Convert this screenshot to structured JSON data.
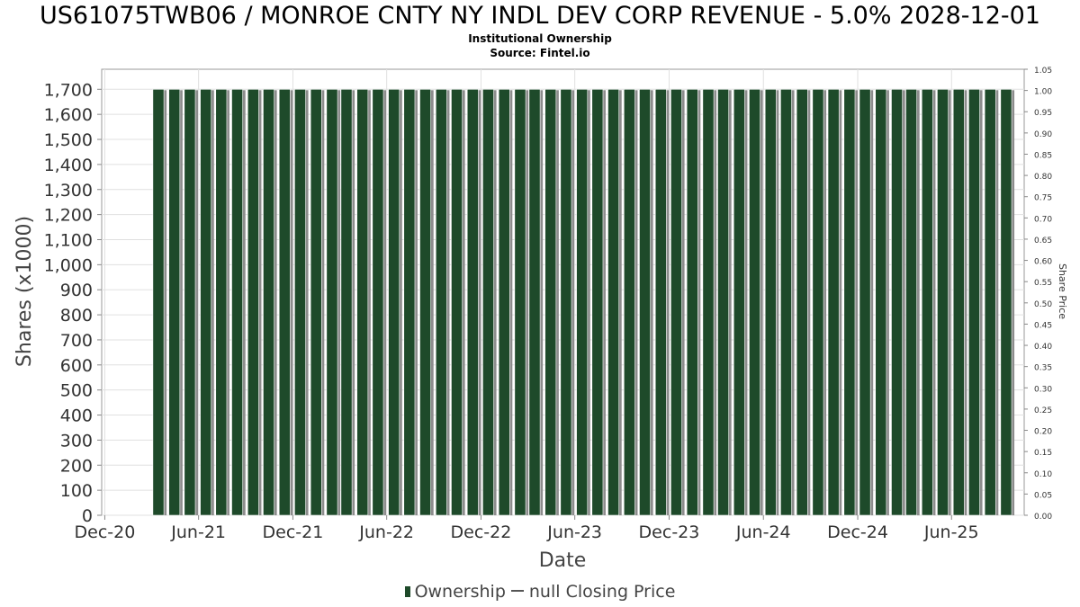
{
  "header": {
    "title": "US61075TWB06 / MONROE CNTY NY INDL DEV CORP REVENUE - 5.0% 2028-12-01",
    "subtitle": "Institutional Ownership",
    "source": "Source: Fintel.io"
  },
  "legend": {
    "ownership_label": "Ownership",
    "price_label": "null Closing Price"
  },
  "colors": {
    "bar_fill": "#1e4a2a",
    "bar_shadow": "#8c8c8c",
    "grid": "#e0e0e0",
    "axis_text": "#333333"
  },
  "chart_data": {
    "type": "bar",
    "title": "US61075TWB06 / MONROE CNTY NY INDL DEV CORP REVENUE - 5.0% 2028-12-01",
    "subtitle": "Institutional Ownership",
    "xlabel": "Date",
    "ylabel": "Shares (x1000)",
    "y2label": "Share Price",
    "x_ticks": [
      "Dec-20",
      "Jun-21",
      "Dec-21",
      "Jun-22",
      "Dec-22",
      "Jun-23",
      "Dec-23",
      "Jun-24",
      "Dec-24",
      "Jun-25"
    ],
    "y_ticks": [
      "0",
      "100",
      "200",
      "300",
      "400",
      "500",
      "600",
      "700",
      "800",
      "900",
      "1,000",
      "1,100",
      "1,200",
      "1,300",
      "1,400",
      "1,500",
      "1,600",
      "1,700"
    ],
    "y2_ticks": [
      "0.00",
      "0.05",
      "0.10",
      "0.15",
      "0.20",
      "0.25",
      "0.30",
      "0.35",
      "0.40",
      "0.45",
      "0.50",
      "0.55",
      "0.60",
      "0.65",
      "0.70",
      "0.75",
      "0.80",
      "0.85",
      "0.90",
      "0.95",
      "1.00",
      "1.05"
    ],
    "ylim": [
      0,
      1780
    ],
    "y2lim": [
      0,
      1.05
    ],
    "x_range": [
      "2020-11-25",
      "2025-10-20"
    ],
    "legend_position": "bottom",
    "grid": true,
    "series": [
      {
        "name": "Ownership",
        "x": [
          "2021-03-15",
          "2021-04-15",
          "2021-05-15",
          "2021-06-15",
          "2021-07-15",
          "2021-08-15",
          "2021-09-15",
          "2021-10-15",
          "2021-11-15",
          "2021-12-15",
          "2022-01-15",
          "2022-02-15",
          "2022-03-15",
          "2022-04-15",
          "2022-05-15",
          "2022-06-15",
          "2022-07-15",
          "2022-08-15",
          "2022-09-15",
          "2022-10-15",
          "2022-11-15",
          "2022-12-15",
          "2023-01-15",
          "2023-02-15",
          "2023-03-15",
          "2023-04-15",
          "2023-05-15",
          "2023-06-15",
          "2023-07-15",
          "2023-08-15",
          "2023-09-15",
          "2023-10-15",
          "2023-11-15",
          "2023-12-15",
          "2024-01-15",
          "2024-02-15",
          "2024-03-15",
          "2024-04-15",
          "2024-05-15",
          "2024-06-15",
          "2024-07-15",
          "2024-08-15",
          "2024-09-15",
          "2024-10-15",
          "2024-11-15",
          "2024-12-15",
          "2025-01-15",
          "2025-02-15",
          "2025-03-15",
          "2025-04-15",
          "2025-05-15",
          "2025-06-15",
          "2025-07-15",
          "2025-08-15",
          "2025-09-15"
        ],
        "values": [
          1700,
          1700,
          1700,
          1700,
          1700,
          1700,
          1700,
          1700,
          1700,
          1700,
          1700,
          1700,
          1700,
          1700,
          1700,
          1700,
          1700,
          1700,
          1700,
          1700,
          1700,
          1700,
          1700,
          1700,
          1700,
          1700,
          1700,
          1700,
          1700,
          1700,
          1700,
          1700,
          1700,
          1700,
          1700,
          1700,
          1700,
          1700,
          1700,
          1700,
          1700,
          1700,
          1700,
          1700,
          1700,
          1700,
          1700,
          1700,
          1700,
          1700,
          1700,
          1700,
          1700,
          1700,
          1700
        ]
      },
      {
        "name": "null Closing Price",
        "x": [],
        "values": []
      }
    ]
  }
}
